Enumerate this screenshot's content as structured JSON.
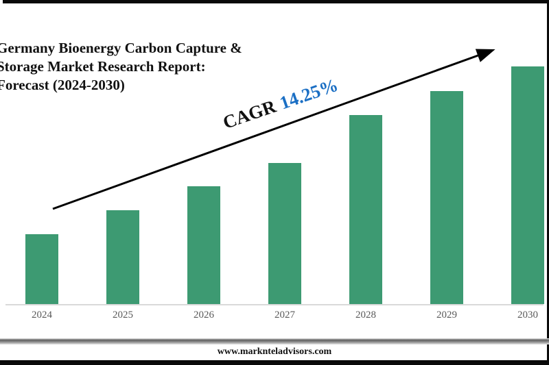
{
  "header": {
    "title_lines": [
      "Germany Bioenergy Carbon Capture &",
      "Storage Market Research Report:",
      "Forecast (2024-2030)"
    ]
  },
  "annotation": {
    "cagr_label": "CAGR",
    "cagr_value": "14.25%",
    "cagr_value_color": "#1b6fc4",
    "arrow_color": "#000000"
  },
  "chart_data": {
    "type": "bar",
    "title": "Germany Bioenergy Carbon Capture & Storage Market Research Report: Forecast (2024-2030)",
    "categories": [
      "2024",
      "2025",
      "2026",
      "2027",
      "2028",
      "2029",
      "2030"
    ],
    "values": [
      102,
      137,
      172,
      206,
      276,
      311,
      347
    ],
    "values_note": "y-axis unlabeled; values are relative bar heights read from pixels (2030 tallest)",
    "xlabel": "",
    "ylabel": "",
    "ylim": [
      0,
      360
    ],
    "grid": false,
    "legend": "none",
    "bar_color": "#3d9a72",
    "axis_line_color": "#d9d9d9",
    "tick_label_color": "#595959"
  },
  "footer": {
    "website": "www.marknteladvisors.com"
  }
}
